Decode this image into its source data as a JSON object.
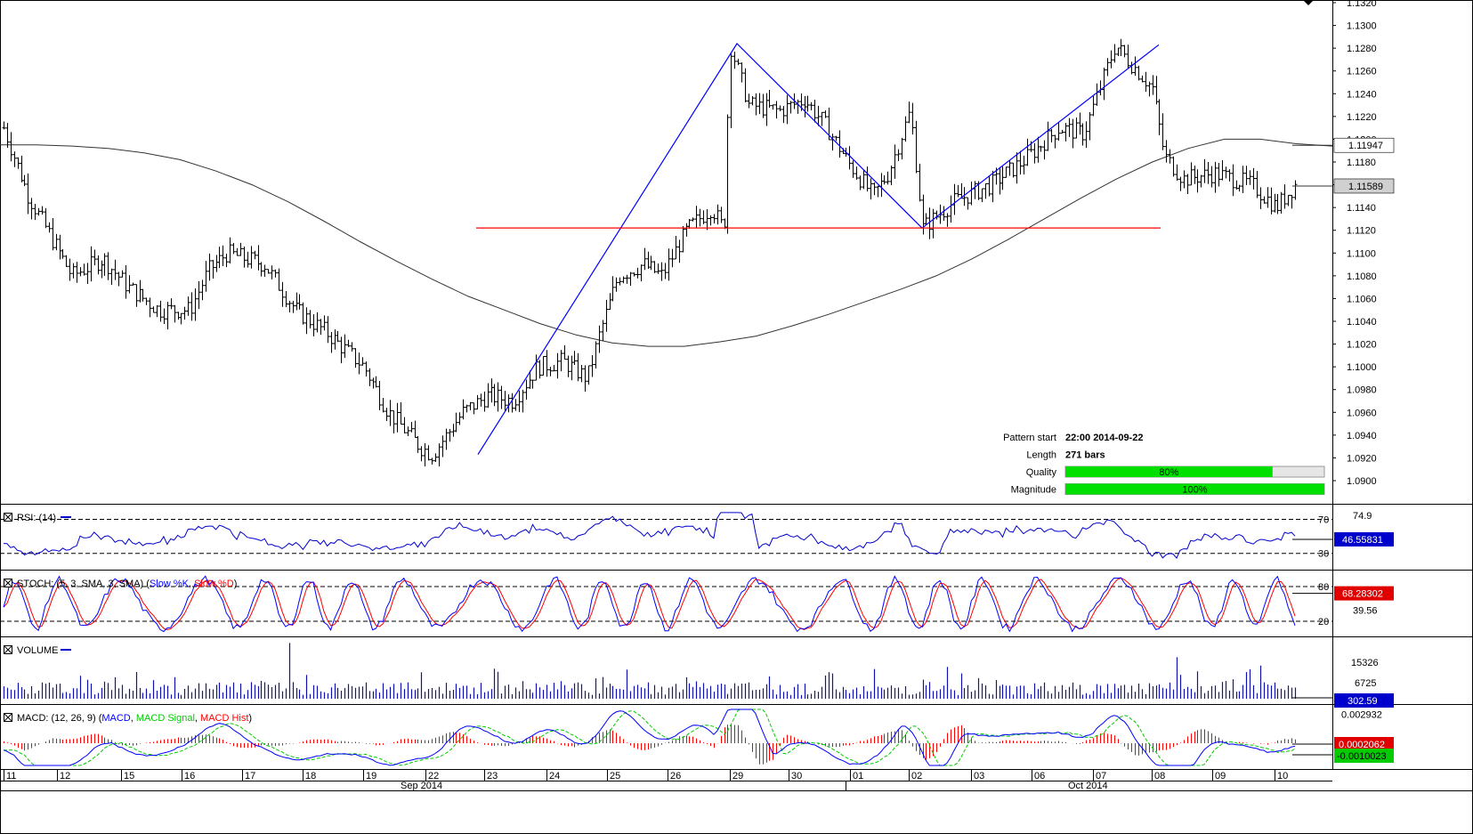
{
  "chart_data": {
    "type": "candlestick",
    "main": {
      "price_ticks": [
        "1.1320",
        "1.1300",
        "1.1280",
        "1.1260",
        "1.1240",
        "1.1220",
        "1.1200",
        "1.1180",
        "1.1160",
        "1.1140",
        "1.1120",
        "1.1100",
        "1.1080",
        "1.1060",
        "1.1040",
        "1.1020",
        "1.1000",
        "1.0980",
        "1.0960",
        "1.0940",
        "1.0920",
        "1.0900"
      ],
      "ylim": [
        1.0885,
        1.1322
      ],
      "ma_current": "1.11947",
      "price_current": "1.11589",
      "ma_color": "#333333",
      "bar_color": "#000000",
      "pattern_points": [
        {
          "x": "2014-09-22 22:00",
          "y": 1.0923
        },
        {
          "x": "2014-09-29 00:00",
          "y": 1.1284
        },
        {
          "x": "2014-10-02 03:00",
          "y": 1.1122
        },
        {
          "x": "2014-10-08 01:00",
          "y": 1.1283
        }
      ],
      "support_level": 1.1122,
      "pattern_line_color": "#0000ff",
      "support_line_color": "#ff0000",
      "ma_points": [
        1.1195,
        1.1195,
        1.1194,
        1.1192,
        1.1188,
        1.1182,
        1.1172,
        1.116,
        1.1145,
        1.1128,
        1.111,
        1.1093,
        1.1077,
        1.1062,
        1.105,
        1.1038,
        1.1028,
        1.1021,
        1.1018,
        1.1018,
        1.1022,
        1.1027,
        1.1036,
        1.1046,
        1.1057,
        1.1068,
        1.108,
        1.1095,
        1.1112,
        1.113,
        1.1148,
        1.1165,
        1.118,
        1.1192,
        1.12,
        1.12,
        1.1196,
        1.1194
      ]
    },
    "pattern_info": {
      "start_label": "Pattern start",
      "start_value": "22:00 2014-09-22",
      "length_label": "Length",
      "length_value": "271 bars",
      "quality_label": "Quality",
      "quality_pct": 80,
      "quality_text": "80%",
      "magnitude_label": "Magnitude",
      "magnitude_pct": 100,
      "magnitude_text": "100%",
      "bar_color": "#00e000"
    },
    "rsi": {
      "label": "RSI: (14)",
      "levels": [
        "70",
        "30"
      ],
      "top_tick": "74.9",
      "current": "46.55831",
      "color": "#0000cc"
    },
    "stoch": {
      "label_parts": [
        "STOCH: (5, 3, SMA, 3, SMA) (",
        "Slow %K",
        ", ",
        "Slow %D",
        ")"
      ],
      "levels": [
        "80",
        "20"
      ],
      "mid_tick": "39.56",
      "current": "68.28302",
      "k_color": "#0000ff",
      "d_color": "#ff0000"
    },
    "volume": {
      "label": "VOLUME",
      "ticks": [
        "15326",
        "6725"
      ],
      "current": "302.59"
    },
    "macd": {
      "label_parts": [
        "MACD: (12, 26, 9) (",
        "MACD",
        ", ",
        "MACD Signal",
        ", ",
        "MACD Hist",
        ")"
      ],
      "tick": "0.002932",
      "current_hist": "0.0002062",
      "current_macd": "-0.0010023",
      "macd_color": "#0000ff",
      "signal_color": "#00cc00",
      "hist_color": "#ff0000"
    },
    "x_axis": {
      "day_labels": [
        "11",
        "12",
        "15",
        "16",
        "17",
        "18",
        "19",
        "22",
        "23",
        "24",
        "25",
        "26",
        "29",
        "30",
        "01",
        "02",
        "03",
        "06",
        "07",
        "08",
        "09",
        "10"
      ],
      "month_labels": [
        "Sep 2014",
        "Oct 2014"
      ]
    }
  }
}
